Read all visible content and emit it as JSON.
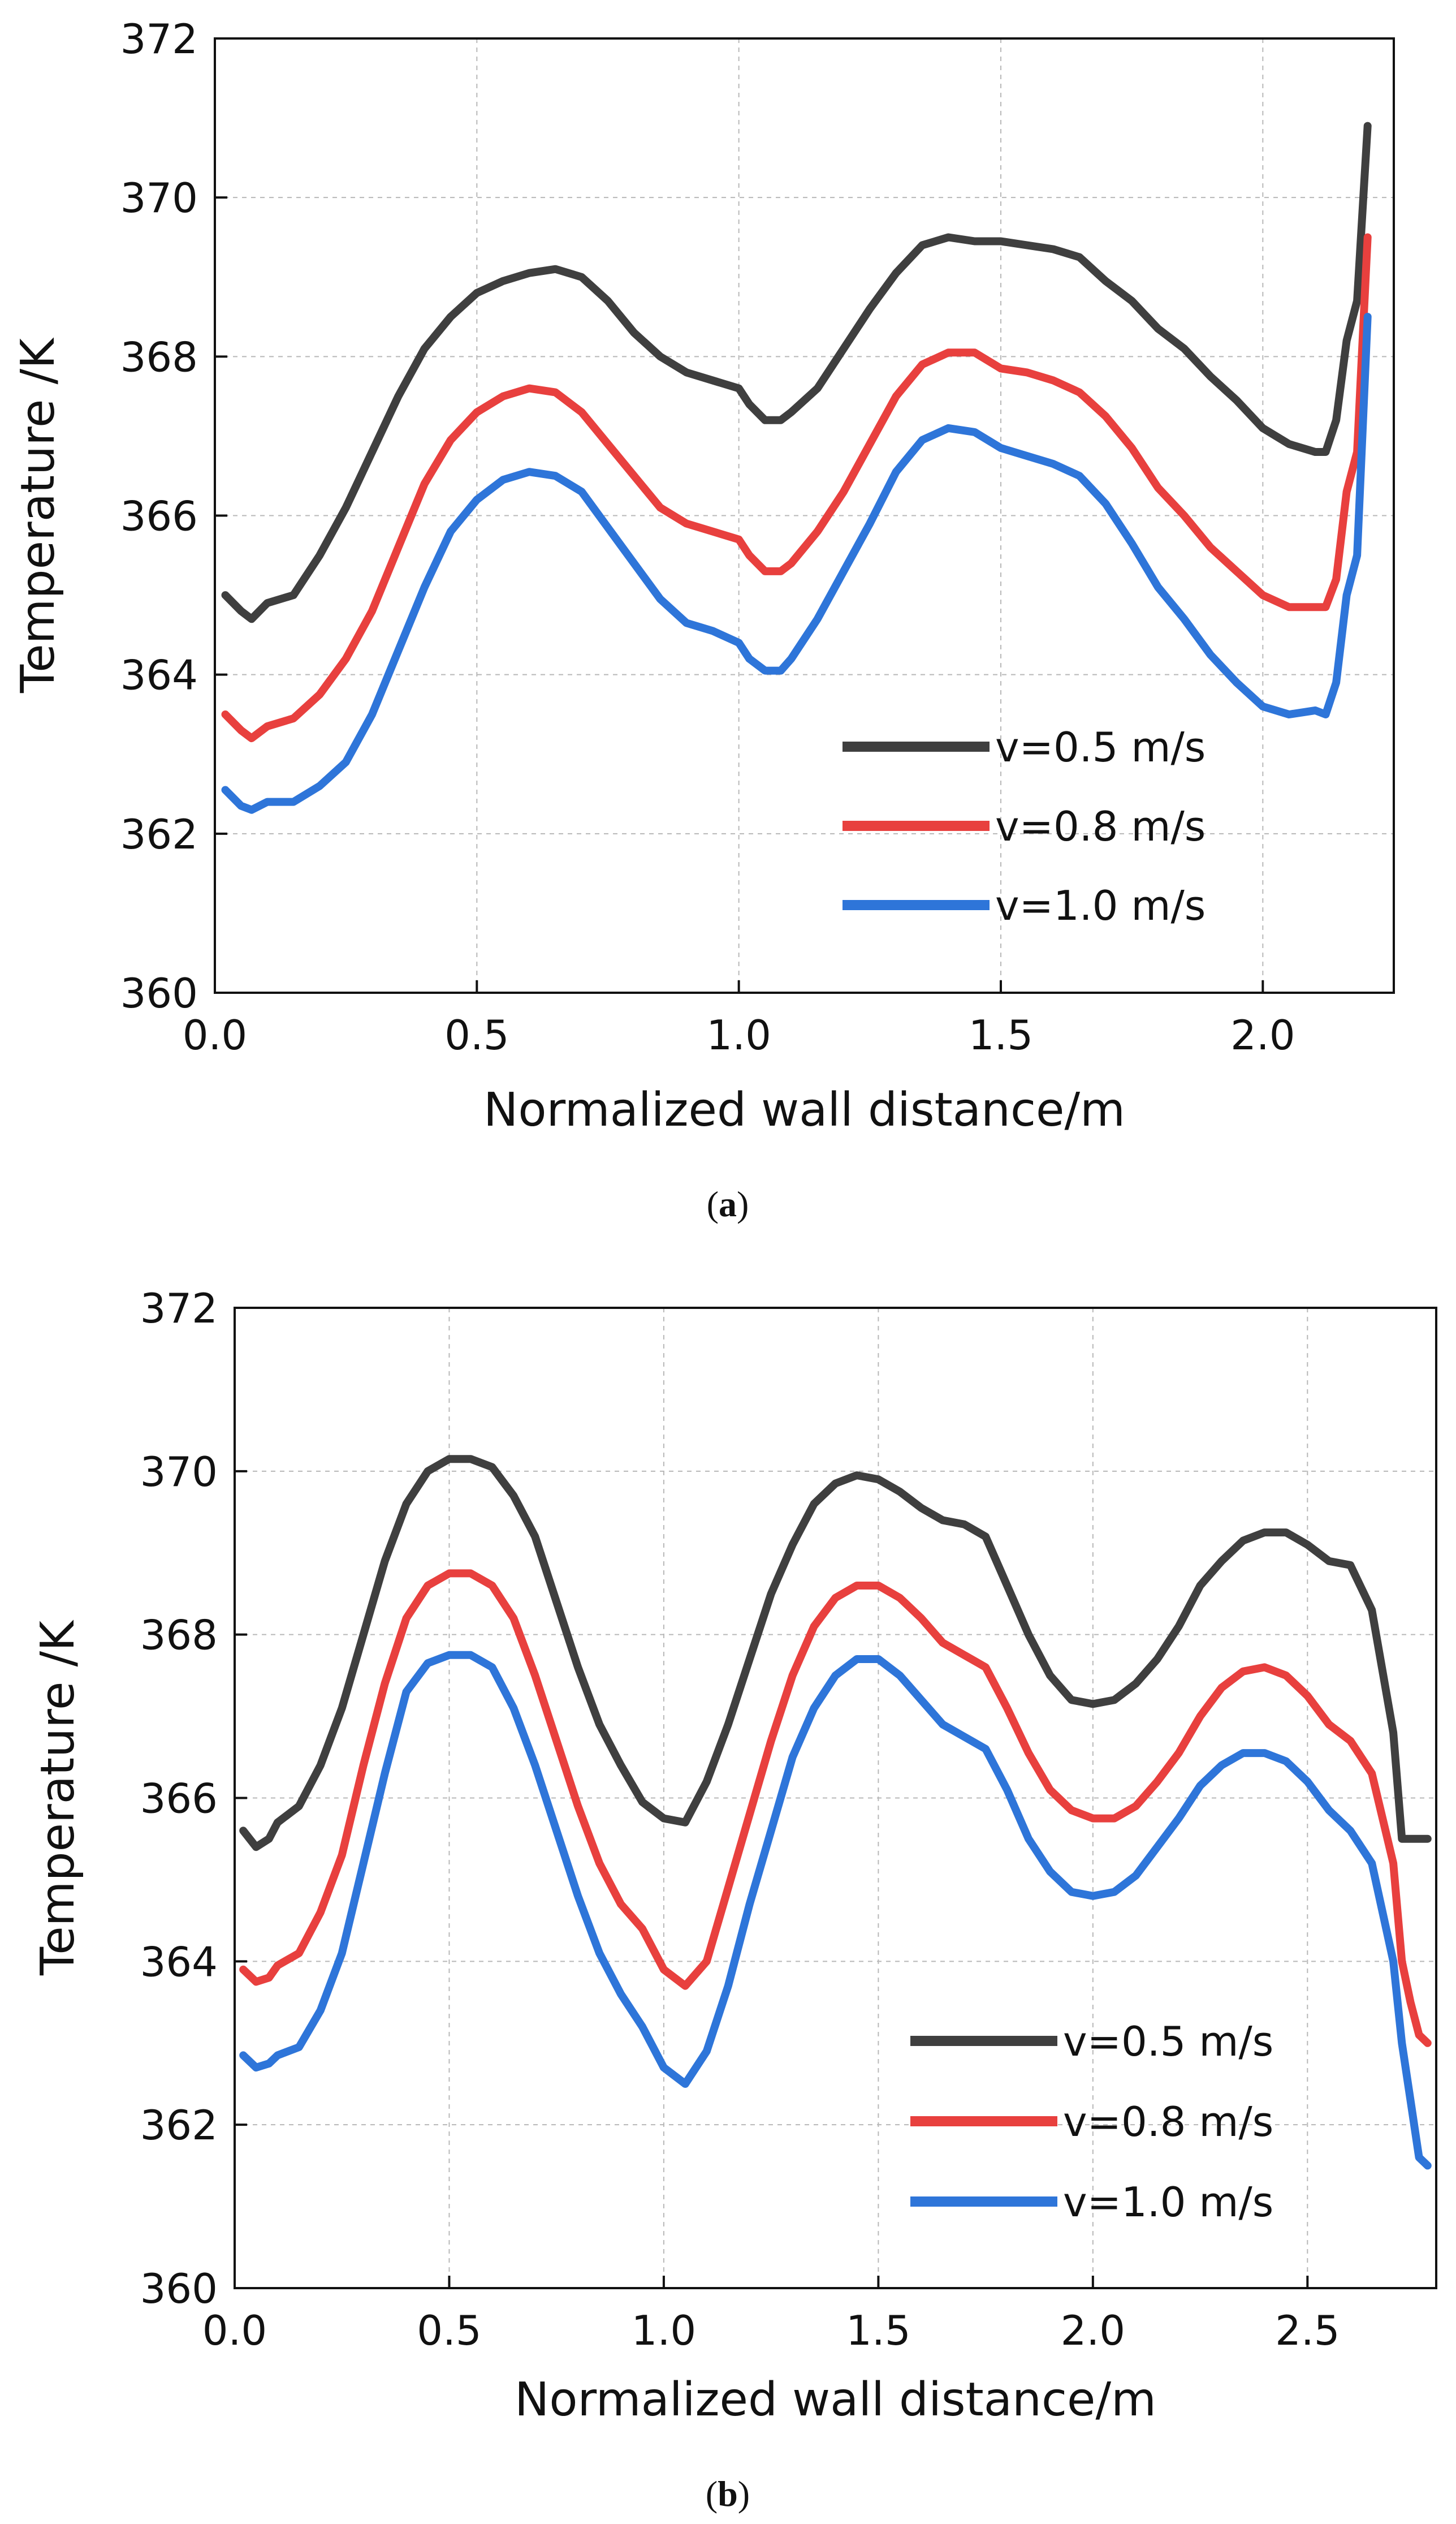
{
  "chart_data": [
    {
      "type": "line",
      "caption_open": "(",
      "caption": "a",
      "caption_close": ")",
      "title": "",
      "xlabel": "Normalized wall distance/m",
      "ylabel": "Temperature /K",
      "xlim": [
        0.0,
        2.25
      ],
      "ylim": [
        360,
        372
      ],
      "xticks": [
        0.0,
        0.5,
        1.0,
        1.5,
        2.0
      ],
      "xtick_labels": [
        "0.0",
        "0.5",
        "1.0",
        "1.5",
        "2.0"
      ],
      "yticks": [
        360,
        362,
        364,
        366,
        368,
        370,
        372
      ],
      "ytick_labels": [
        "360",
        "362",
        "364",
        "366",
        "368",
        "370",
        "372"
      ],
      "grid": true,
      "legend_position": "bottom-right",
      "series": [
        {
          "name": "v=0.5 m/s",
          "color": "#3f3f3f",
          "x": [
            0.02,
            0.05,
            0.07,
            0.1,
            0.15,
            0.2,
            0.25,
            0.3,
            0.35,
            0.4,
            0.45,
            0.5,
            0.55,
            0.6,
            0.65,
            0.7,
            0.75,
            0.8,
            0.85,
            0.9,
            0.95,
            1.0,
            1.02,
            1.05,
            1.08,
            1.1,
            1.15,
            1.2,
            1.25,
            1.3,
            1.35,
            1.4,
            1.45,
            1.5,
            1.55,
            1.6,
            1.65,
            1.7,
            1.75,
            1.8,
            1.85,
            1.9,
            1.95,
            2.0,
            2.05,
            2.1,
            2.12,
            2.14,
            2.16,
            2.18,
            2.2
          ],
          "y": [
            365.0,
            364.8,
            364.7,
            364.9,
            365.0,
            365.5,
            366.1,
            366.8,
            367.5,
            368.1,
            368.5,
            368.8,
            368.95,
            369.05,
            369.1,
            369.0,
            368.7,
            368.3,
            368.0,
            367.8,
            367.7,
            367.6,
            367.4,
            367.2,
            367.2,
            367.3,
            367.6,
            368.1,
            368.6,
            369.05,
            369.4,
            369.5,
            369.45,
            369.45,
            369.4,
            369.35,
            369.25,
            368.95,
            368.7,
            368.35,
            368.1,
            367.75,
            367.45,
            367.1,
            366.9,
            366.8,
            366.8,
            367.2,
            368.2,
            368.7,
            370.9
          ]
        },
        {
          "name": "v=0.8 m/s",
          "color": "#e8403e",
          "x": [
            0.02,
            0.05,
            0.07,
            0.1,
            0.15,
            0.2,
            0.25,
            0.3,
            0.35,
            0.4,
            0.45,
            0.5,
            0.55,
            0.6,
            0.65,
            0.7,
            0.75,
            0.8,
            0.85,
            0.9,
            0.95,
            1.0,
            1.02,
            1.05,
            1.08,
            1.1,
            1.15,
            1.2,
            1.25,
            1.3,
            1.35,
            1.4,
            1.45,
            1.5,
            1.55,
            1.6,
            1.65,
            1.7,
            1.75,
            1.8,
            1.85,
            1.9,
            1.95,
            2.0,
            2.05,
            2.1,
            2.12,
            2.14,
            2.16,
            2.18,
            2.2
          ],
          "y": [
            363.5,
            363.3,
            363.2,
            363.35,
            363.45,
            363.75,
            364.2,
            364.8,
            365.6,
            366.4,
            366.95,
            367.3,
            367.5,
            367.6,
            367.55,
            367.3,
            366.9,
            366.5,
            366.1,
            365.9,
            365.8,
            365.7,
            365.5,
            365.3,
            365.3,
            365.4,
            365.8,
            366.3,
            366.9,
            367.5,
            367.9,
            368.05,
            368.05,
            367.85,
            367.8,
            367.7,
            367.55,
            367.25,
            366.85,
            366.35,
            366.0,
            365.6,
            365.3,
            365.0,
            364.85,
            364.85,
            364.85,
            365.2,
            366.3,
            366.8,
            369.5
          ]
        },
        {
          "name": "v=1.0 m/s",
          "color": "#2e75d9",
          "x": [
            0.02,
            0.05,
            0.07,
            0.1,
            0.15,
            0.2,
            0.25,
            0.3,
            0.35,
            0.4,
            0.45,
            0.5,
            0.55,
            0.6,
            0.65,
            0.7,
            0.75,
            0.8,
            0.85,
            0.9,
            0.95,
            1.0,
            1.02,
            1.05,
            1.08,
            1.1,
            1.15,
            1.2,
            1.25,
            1.3,
            1.35,
            1.4,
            1.45,
            1.5,
            1.55,
            1.6,
            1.65,
            1.7,
            1.75,
            1.8,
            1.85,
            1.9,
            1.95,
            2.0,
            2.05,
            2.1,
            2.12,
            2.14,
            2.16,
            2.18,
            2.2
          ],
          "y": [
            362.55,
            362.35,
            362.3,
            362.4,
            362.4,
            362.6,
            362.9,
            363.5,
            364.3,
            365.1,
            365.8,
            366.2,
            366.45,
            366.55,
            366.5,
            366.3,
            365.85,
            365.4,
            364.95,
            364.65,
            364.55,
            364.4,
            364.2,
            364.05,
            364.05,
            364.2,
            364.7,
            365.3,
            365.9,
            366.55,
            366.95,
            367.1,
            367.05,
            366.85,
            366.75,
            366.65,
            366.5,
            366.15,
            365.65,
            365.1,
            364.7,
            364.25,
            363.9,
            363.6,
            363.5,
            363.55,
            363.5,
            363.9,
            365.0,
            365.5,
            368.5
          ]
        }
      ]
    },
    {
      "type": "line",
      "caption_open": "(",
      "caption": "b",
      "caption_close": ")",
      "title": "",
      "xlabel": "Normalized wall distance/m",
      "ylabel": "Temperature /K",
      "xlim": [
        0.0,
        2.8
      ],
      "ylim": [
        360,
        372
      ],
      "xticks": [
        0.0,
        0.5,
        1.0,
        1.5,
        2.0,
        2.5
      ],
      "xtick_labels": [
        "0.0",
        "0.5",
        "1.0",
        "1.5",
        "2.0",
        "2.5"
      ],
      "yticks": [
        360,
        362,
        364,
        366,
        368,
        370,
        372
      ],
      "ytick_labels": [
        "360",
        "362",
        "364",
        "366",
        "368",
        "370",
        "372"
      ],
      "grid": true,
      "legend_position": "bottom-right",
      "series": [
        {
          "name": "v=0.5 m/s",
          "color": "#3f3f3f",
          "x": [
            0.02,
            0.05,
            0.08,
            0.1,
            0.15,
            0.2,
            0.25,
            0.3,
            0.35,
            0.4,
            0.45,
            0.5,
            0.55,
            0.6,
            0.65,
            0.7,
            0.75,
            0.8,
            0.85,
            0.9,
            0.95,
            1.0,
            1.05,
            1.1,
            1.15,
            1.2,
            1.25,
            1.3,
            1.35,
            1.4,
            1.45,
            1.5,
            1.55,
            1.6,
            1.65,
            1.7,
            1.75,
            1.8,
            1.85,
            1.9,
            1.95,
            2.0,
            2.05,
            2.1,
            2.15,
            2.2,
            2.25,
            2.3,
            2.35,
            2.4,
            2.45,
            2.5,
            2.55,
            2.6,
            2.65,
            2.7,
            2.72,
            2.74,
            2.76,
            2.78
          ],
          "y": [
            365.6,
            365.4,
            365.5,
            365.7,
            365.9,
            366.4,
            367.1,
            368.0,
            368.9,
            369.6,
            370.0,
            370.15,
            370.15,
            370.05,
            369.7,
            369.2,
            368.4,
            367.6,
            366.9,
            366.4,
            365.95,
            365.75,
            365.7,
            366.2,
            366.9,
            367.7,
            368.5,
            369.1,
            369.6,
            369.85,
            369.95,
            369.9,
            369.75,
            369.55,
            369.4,
            369.35,
            369.2,
            368.6,
            368.0,
            367.5,
            367.2,
            367.15,
            367.2,
            367.4,
            367.7,
            368.1,
            368.6,
            368.9,
            369.15,
            369.25,
            369.25,
            369.1,
            368.9,
            368.85,
            368.3,
            366.8,
            365.5,
            365.5,
            365.5,
            365.5
          ]
        },
        {
          "name": "v=0.8 m/s",
          "color": "#e8403e",
          "x": [
            0.02,
            0.05,
            0.08,
            0.1,
            0.15,
            0.2,
            0.25,
            0.3,
            0.35,
            0.4,
            0.45,
            0.5,
            0.55,
            0.6,
            0.65,
            0.7,
            0.75,
            0.8,
            0.85,
            0.9,
            0.95,
            1.0,
            1.05,
            1.1,
            1.15,
            1.2,
            1.25,
            1.3,
            1.35,
            1.4,
            1.45,
            1.5,
            1.55,
            1.6,
            1.65,
            1.7,
            1.75,
            1.8,
            1.85,
            1.9,
            1.95,
            2.0,
            2.05,
            2.1,
            2.15,
            2.2,
            2.25,
            2.3,
            2.35,
            2.4,
            2.45,
            2.5,
            2.55,
            2.6,
            2.65,
            2.7,
            2.72,
            2.74,
            2.76,
            2.78
          ],
          "y": [
            363.9,
            363.75,
            363.8,
            363.95,
            364.1,
            364.6,
            365.3,
            366.4,
            367.4,
            368.2,
            368.6,
            368.75,
            368.75,
            368.6,
            368.2,
            367.5,
            366.7,
            365.9,
            365.2,
            364.7,
            364.4,
            363.9,
            363.7,
            364.0,
            364.9,
            365.8,
            366.7,
            367.5,
            368.1,
            368.45,
            368.6,
            368.6,
            368.45,
            368.2,
            367.9,
            367.75,
            367.6,
            367.1,
            366.55,
            366.1,
            365.85,
            365.75,
            365.75,
            365.9,
            366.2,
            366.55,
            367.0,
            367.35,
            367.55,
            367.6,
            367.5,
            367.25,
            366.9,
            366.7,
            366.3,
            365.2,
            364.0,
            363.5,
            363.1,
            363.0
          ]
        },
        {
          "name": "v=1.0 m/s",
          "color": "#2e75d9",
          "x": [
            0.02,
            0.05,
            0.08,
            0.1,
            0.15,
            0.2,
            0.25,
            0.3,
            0.35,
            0.4,
            0.45,
            0.5,
            0.55,
            0.6,
            0.65,
            0.7,
            0.75,
            0.8,
            0.85,
            0.9,
            0.95,
            1.0,
            1.05,
            1.1,
            1.15,
            1.2,
            1.25,
            1.3,
            1.35,
            1.4,
            1.45,
            1.5,
            1.55,
            1.6,
            1.65,
            1.7,
            1.75,
            1.8,
            1.85,
            1.9,
            1.95,
            2.0,
            2.05,
            2.1,
            2.15,
            2.2,
            2.25,
            2.3,
            2.35,
            2.4,
            2.45,
            2.5,
            2.55,
            2.6,
            2.65,
            2.7,
            2.72,
            2.74,
            2.76,
            2.78
          ],
          "y": [
            362.85,
            362.7,
            362.75,
            362.85,
            362.95,
            363.4,
            364.1,
            365.2,
            366.3,
            367.3,
            367.65,
            367.75,
            367.75,
            367.6,
            367.1,
            366.4,
            365.6,
            364.8,
            364.1,
            363.6,
            363.2,
            362.7,
            362.5,
            362.9,
            363.7,
            364.7,
            365.6,
            366.5,
            367.1,
            367.5,
            367.7,
            367.7,
            367.5,
            367.2,
            366.9,
            366.75,
            366.6,
            366.1,
            365.5,
            365.1,
            364.85,
            364.8,
            364.85,
            365.05,
            365.4,
            365.75,
            366.15,
            366.4,
            366.55,
            366.55,
            366.45,
            366.2,
            365.85,
            365.6,
            365.2,
            364.0,
            363.0,
            362.3,
            361.6,
            361.5
          ]
        }
      ]
    }
  ]
}
